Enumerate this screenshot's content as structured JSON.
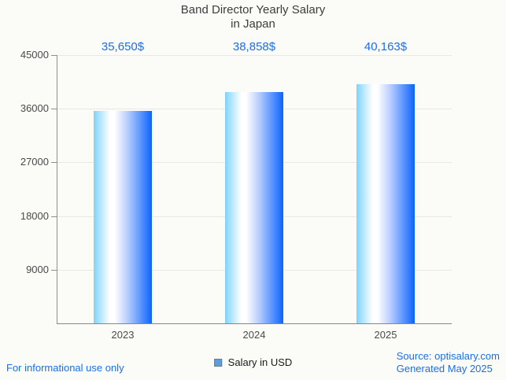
{
  "title": {
    "line1": "Band Director Yearly Salary",
    "line2": "in Japan"
  },
  "chart_data": {
    "type": "bar",
    "title": "Band Director Yearly Salary in Japan",
    "categories": [
      "2023",
      "2024",
      "2025"
    ],
    "series": [
      {
        "name": "Salary in USD",
        "values": [
          35650,
          38858,
          40163
        ]
      }
    ],
    "value_labels": [
      "35,650$",
      "38,858$",
      "40,163$"
    ],
    "xlabel": "",
    "ylabel": "",
    "ylim": [
      0,
      45000
    ],
    "yticks": [
      9000,
      18000,
      27000,
      36000,
      45000
    ],
    "grid": true,
    "legend_position": "bottom-center"
  },
  "legend": {
    "label": "Salary in USD"
  },
  "footer": {
    "disclaimer": "For informational use only",
    "source": "Source: optisalary.com",
    "generated": "Generated May 2025"
  },
  "colors": {
    "background": "#fbfbf7",
    "accent_text": "#1a6ef0",
    "title_text": "#3d3d3d",
    "tick_text": "#4a4a4a",
    "axis": "#8f8f8f",
    "axis_dark": "#878787",
    "grid": "#e8e8e5",
    "legend_swatch_fill": "#5c9ce0",
    "legend_swatch_border": "#6e7b8a",
    "bar_gradient_stops": [
      [
        "#7fd4fa",
        "0%"
      ],
      [
        "#ffffff",
        "28%"
      ],
      [
        "#ffffff",
        "36%"
      ],
      [
        "#b9ceff",
        "58%"
      ],
      [
        "#0c64fd",
        "100%"
      ]
    ]
  }
}
